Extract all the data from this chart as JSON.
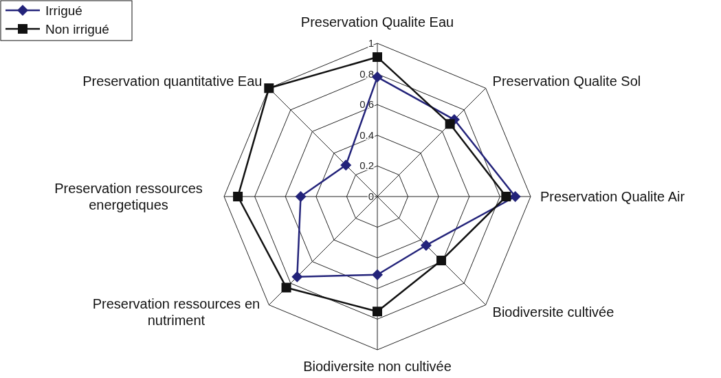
{
  "chart_data": {
    "type": "radar",
    "categories": [
      "Preservation Qualite Eau",
      "Preservation Qualite Sol",
      "Preservation Qualite Air",
      "Biodiversite cultivée",
      "Biodiversite non cultivée",
      "Preservation ressources en nutriment",
      "Preservation ressources energetiques",
      "Preservation quantitative Eau"
    ],
    "series": [
      {
        "name": "Irrigué",
        "color": "#23237a",
        "marker": "diamond",
        "values": [
          0.78,
          0.71,
          0.9,
          0.45,
          0.51,
          0.74,
          0.5,
          0.29
        ]
      },
      {
        "name": "Non irrigué",
        "color": "#111111",
        "marker": "square",
        "values": [
          0.91,
          0.67,
          0.84,
          0.59,
          0.75,
          0.84,
          0.91,
          1.0
        ]
      }
    ],
    "ylim": [
      0,
      1
    ],
    "yticks": [
      0,
      0.2,
      0.4,
      0.6,
      0.8,
      1
    ],
    "grid": true,
    "legend": "top left"
  }
}
